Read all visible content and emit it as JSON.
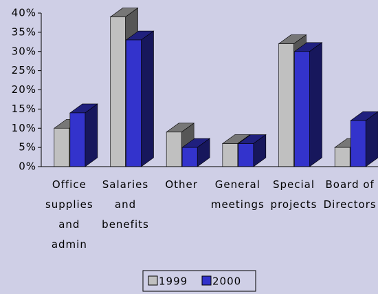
{
  "chart_data": {
    "type": "bar3d",
    "categories": [
      "Office\nsupplies\nand\nadmin",
      "Salaries\nand\nbenefits",
      "Other",
      "General\nmeetings",
      "Special\nprojects",
      "Board of\nDirectors"
    ],
    "series": [
      {
        "name": "1999",
        "color": "#c0c0c0",
        "values": [
          10,
          39,
          9,
          6,
          32,
          5
        ]
      },
      {
        "name": "2000",
        "color": "#3333cc",
        "values": [
          14,
          33,
          5,
          6,
          30,
          12
        ]
      }
    ],
    "ylim": [
      0,
      40
    ],
    "yticks": [
      {
        "value": 0,
        "label": "0%"
      },
      {
        "value": 5,
        "label": "5%"
      },
      {
        "value": 10,
        "label": "10%"
      },
      {
        "value": 15,
        "label": "15%"
      },
      {
        "value": 20,
        "label": "20%"
      },
      {
        "value": 25,
        "label": "25%"
      },
      {
        "value": 30,
        "label": "30%"
      },
      {
        "value": 35,
        "label": "35%"
      },
      {
        "value": 40,
        "label": "40%"
      }
    ],
    "legend": "bottom"
  }
}
